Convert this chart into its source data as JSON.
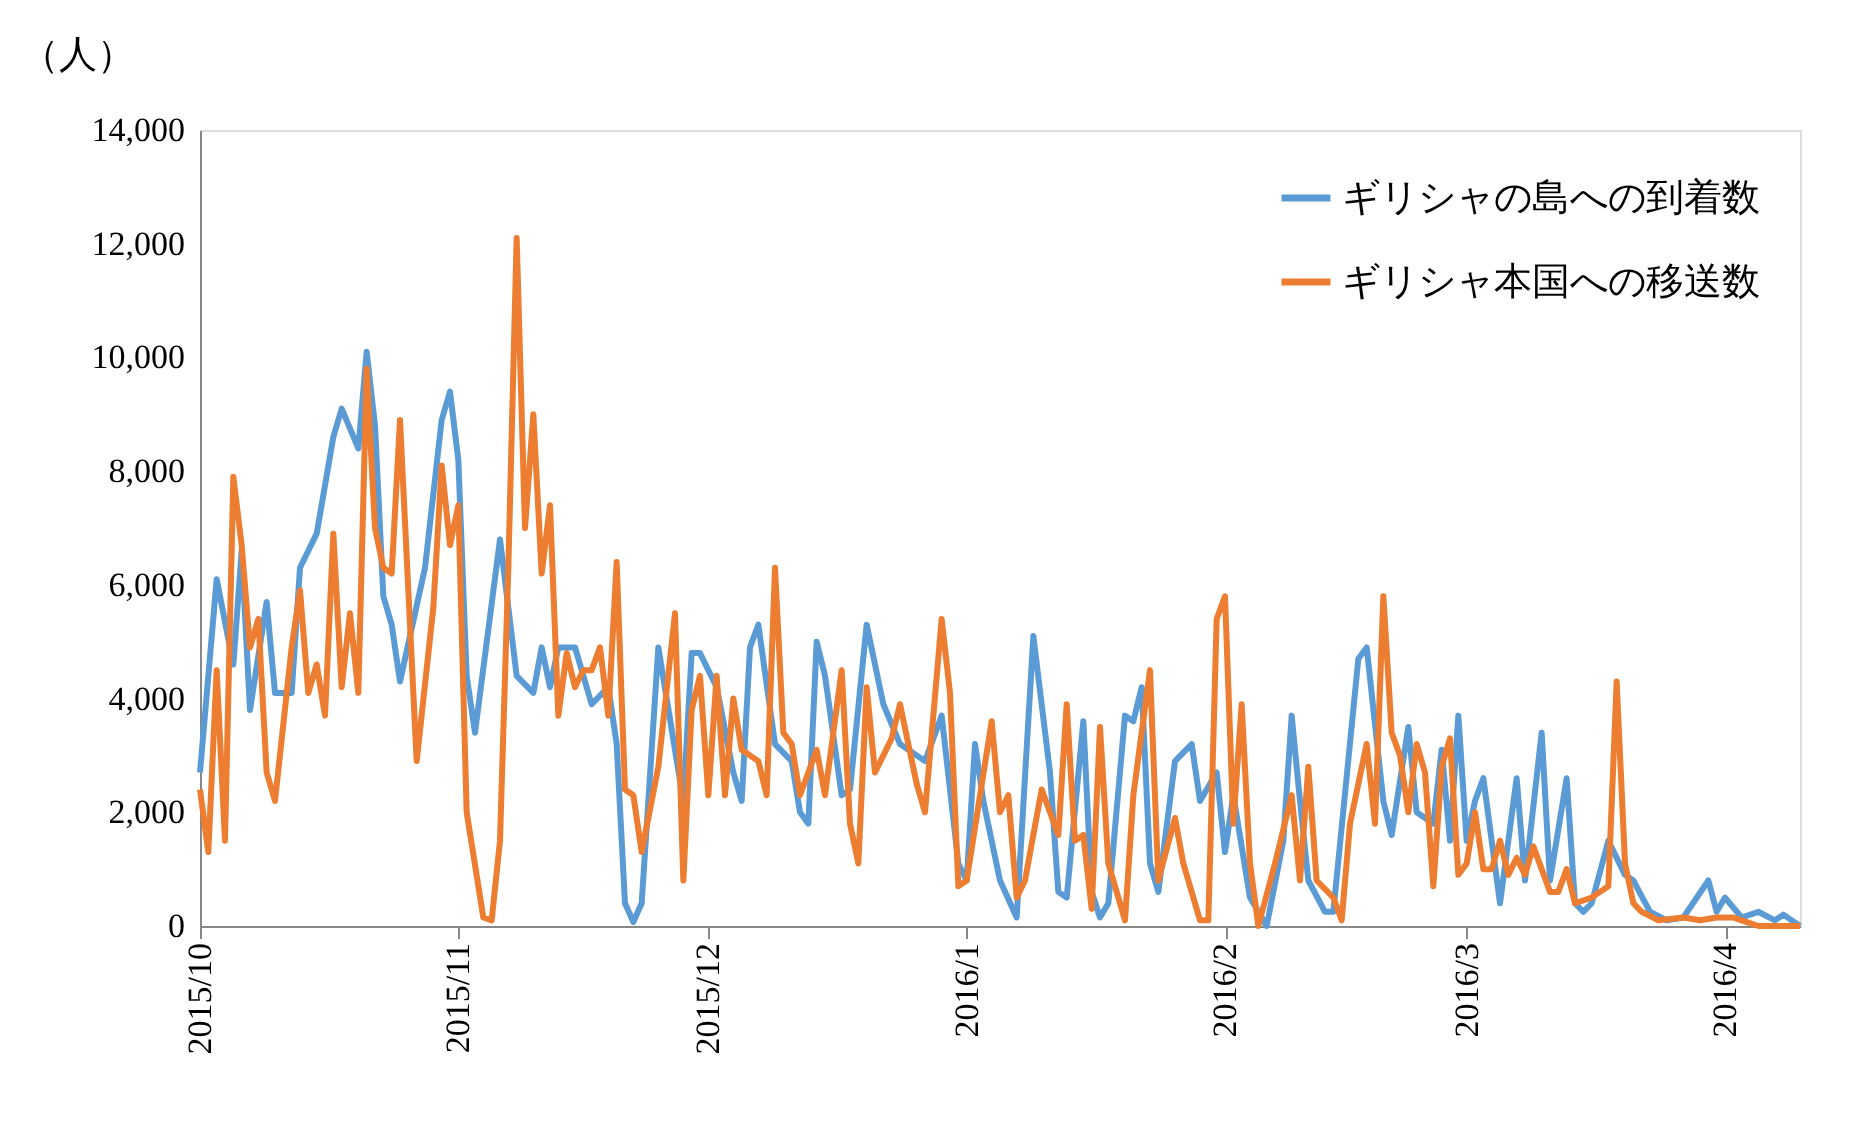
{
  "chart_data": {
    "type": "line",
    "ylabel": "（人）",
    "legend": "top right",
    "grid": false,
    "xlim": [
      "2015-10-01",
      "2016-04-10"
    ],
    "ylim": [
      0,
      14000
    ],
    "yticks": [
      {
        "value": 0,
        "label": "0"
      },
      {
        "value": 2000,
        "label": "2,000"
      },
      {
        "value": 4000,
        "label": "4,000"
      },
      {
        "value": 6000,
        "label": "6,000"
      },
      {
        "value": 8000,
        "label": "8,000"
      },
      {
        "value": 10000,
        "label": "10,000"
      },
      {
        "value": 12000,
        "label": "12,000"
      },
      {
        "value": 14000,
        "label": "14,000"
      }
    ],
    "xticks": [
      {
        "value": "2015-10-01",
        "label": "2015/10"
      },
      {
        "value": "2015-11-01",
        "label": "2015/11"
      },
      {
        "value": "2015-12-01",
        "label": "2015/12"
      },
      {
        "value": "2016-01-01",
        "label": "2016/1"
      },
      {
        "value": "2016-02-01",
        "label": "2016/2"
      },
      {
        "value": "2016-03-01",
        "label": "2016/3"
      },
      {
        "value": "2016-04-01",
        "label": "2016/4"
      }
    ],
    "series": [
      {
        "name": "ギリシャの島への到着数",
        "color": "#5b9bd5",
        "x": [
          "2015-10-01",
          "2015-10-03",
          "2015-10-05",
          "2015-10-06",
          "2015-10-07",
          "2015-10-09",
          "2015-10-10",
          "2015-10-12",
          "2015-10-13",
          "2015-10-15",
          "2015-10-17",
          "2015-10-18",
          "2015-10-20",
          "2015-10-21",
          "2015-10-22",
          "2015-10-23",
          "2015-10-24",
          "2015-10-25",
          "2015-10-28",
          "2015-10-30",
          "2015-10-31",
          "2015-11-01",
          "2015-11-02",
          "2015-11-03",
          "2015-11-06",
          "2015-11-07",
          "2015-11-08",
          "2015-11-10",
          "2015-11-11",
          "2015-11-12",
          "2015-11-13",
          "2015-11-15",
          "2015-11-17",
          "2015-11-19",
          "2015-11-20",
          "2015-11-21",
          "2015-11-22",
          "2015-11-23",
          "2015-11-25",
          "2015-11-28",
          "2015-11-29",
          "2015-11-30",
          "2015-12-02",
          "2015-12-04",
          "2015-12-05",
          "2015-12-06",
          "2015-12-07",
          "2015-12-09",
          "2015-12-11",
          "2015-12-12",
          "2015-12-13",
          "2015-12-14",
          "2015-12-15",
          "2015-12-17",
          "2015-12-18",
          "2015-12-20",
          "2015-12-22",
          "2015-12-24",
          "2015-12-27",
          "2015-12-29",
          "2015-12-31",
          "2016-01-01",
          "2016-01-02",
          "2016-01-03",
          "2016-01-05",
          "2016-01-07",
          "2016-01-09",
          "2016-01-11",
          "2016-01-12",
          "2016-01-13",
          "2016-01-15",
          "2016-01-16",
          "2016-01-17",
          "2016-01-18",
          "2016-01-20",
          "2016-01-21",
          "2016-01-22",
          "2016-01-23",
          "2016-01-24",
          "2016-01-26",
          "2016-01-28",
          "2016-01-29",
          "2016-01-31",
          "2016-02-01",
          "2016-02-02",
          "2016-02-04",
          "2016-02-06",
          "2016-02-08",
          "2016-02-09",
          "2016-02-10",
          "2016-02-11",
          "2016-02-13",
          "2016-02-14",
          "2016-02-17",
          "2016-02-18",
          "2016-02-20",
          "2016-02-21",
          "2016-02-23",
          "2016-02-24",
          "2016-02-26",
          "2016-02-27",
          "2016-02-28",
          "2016-02-29",
          "2016-03-01",
          "2016-03-02",
          "2016-03-03",
          "2016-03-05",
          "2016-03-07",
          "2016-03-08",
          "2016-03-10",
          "2016-03-11",
          "2016-03-13",
          "2016-03-14",
          "2016-03-15",
          "2016-03-16",
          "2016-03-18",
          "2016-03-20",
          "2016-03-21",
          "2016-03-23",
          "2016-03-25",
          "2016-03-27",
          "2016-03-30",
          "2016-03-31",
          "2016-04-01",
          "2016-04-03",
          "2016-04-05",
          "2016-04-07",
          "2016-04-08",
          "2016-04-10"
        ],
        "values": [
          2700,
          6100,
          4600,
          6600,
          3800,
          5700,
          4100,
          4100,
          6300,
          6900,
          8600,
          9100,
          8400,
          10100,
          8800,
          5800,
          5300,
          4300,
          6300,
          8900,
          9400,
          8200,
          4400,
          3400,
          6800,
          5600,
          4400,
          4100,
          4900,
          4200,
          4900,
          4900,
          3900,
          4200,
          3200,
          400,
          70,
          400,
          4900,
          2200,
          4800,
          4800,
          4200,
          2700,
          2200,
          4900,
          5300,
          3200,
          2900,
          2000,
          1800,
          5000,
          4400,
          2300,
          2400,
          5300,
          3900,
          3200,
          2900,
          3700,
          1100,
          800,
          3200,
          2200,
          800,
          150,
          5100,
          2700,
          600,
          500,
          3600,
          600,
          150,
          400,
          3700,
          3600,
          4200,
          1100,
          600,
          2900,
          3200,
          2200,
          2700,
          1300,
          2300,
          500,
          0,
          1500,
          3700,
          2200,
          800,
          250,
          250,
          4700,
          4900,
          2200,
          1600,
          3500,
          2000,
          1800,
          3100,
          1500,
          3700,
          1500,
          2200,
          2600,
          400,
          2600,
          800,
          3400,
          800,
          2600,
          400,
          250,
          400,
          1500,
          900,
          800,
          250,
          100,
          150,
          800,
          250,
          500,
          150,
          250,
          100,
          200,
          0
        ]
      },
      {
        "name": "ギリシャ本国への移送数",
        "color": "#ed7d31",
        "x": [
          "2015-10-01",
          "2015-10-02",
          "2015-10-03",
          "2015-10-04",
          "2015-10-05",
          "2015-10-06",
          "2015-10-07",
          "2015-10-08",
          "2015-10-09",
          "2015-10-10",
          "2015-10-12",
          "2015-10-13",
          "2015-10-14",
          "2015-10-15",
          "2015-10-16",
          "2015-10-17",
          "2015-10-18",
          "2015-10-19",
          "2015-10-20",
          "2015-10-21",
          "2015-10-22",
          "2015-10-23",
          "2015-10-24",
          "2015-10-25",
          "2015-10-27",
          "2015-10-29",
          "2015-10-30",
          "2015-10-31",
          "2015-11-01",
          "2015-11-02",
          "2015-11-04",
          "2015-11-05",
          "2015-11-06",
          "2015-11-07",
          "2015-11-08",
          "2015-11-09",
          "2015-11-10",
          "2015-11-11",
          "2015-11-12",
          "2015-11-13",
          "2015-11-14",
          "2015-11-15",
          "2015-11-16",
          "2015-11-17",
          "2015-11-18",
          "2015-11-19",
          "2015-11-20",
          "2015-11-21",
          "2015-11-22",
          "2015-11-23",
          "2015-11-25",
          "2015-11-27",
          "2015-11-28",
          "2015-11-29",
          "2015-11-30",
          "2015-12-01",
          "2015-12-02",
          "2015-12-03",
          "2015-12-04",
          "2015-12-05",
          "2015-12-07",
          "2015-12-08",
          "2015-12-09",
          "2015-12-10",
          "2015-12-11",
          "2015-12-12",
          "2015-12-14",
          "2015-12-15",
          "2015-12-17",
          "2015-12-18",
          "2015-12-19",
          "2015-12-20",
          "2015-12-21",
          "2015-12-23",
          "2015-12-24",
          "2015-12-26",
          "2015-12-27",
          "2015-12-29",
          "2015-12-30",
          "2015-12-31",
          "2016-01-01",
          "2016-01-04",
          "2016-01-05",
          "2016-01-06",
          "2016-01-07",
          "2016-01-08",
          "2016-01-10",
          "2016-01-12",
          "2016-01-13",
          "2016-01-14",
          "2016-01-15",
          "2016-01-16",
          "2016-01-17",
          "2016-01-18",
          "2016-01-20",
          "2016-01-21",
          "2016-01-23",
          "2016-01-24",
          "2016-01-26",
          "2016-01-27",
          "2016-01-29",
          "2016-01-30",
          "2016-01-31",
          "2016-02-01",
          "2016-02-02",
          "2016-02-03",
          "2016-02-04",
          "2016-02-05",
          "2016-02-07",
          "2016-02-08",
          "2016-02-09",
          "2016-02-10",
          "2016-02-11",
          "2016-02-12",
          "2016-02-14",
          "2016-02-15",
          "2016-02-16",
          "2016-02-18",
          "2016-02-19",
          "2016-02-20",
          "2016-02-21",
          "2016-02-22",
          "2016-02-23",
          "2016-02-24",
          "2016-02-25",
          "2016-02-26",
          "2016-02-27",
          "2016-02-28",
          "2016-02-29",
          "2016-03-01",
          "2016-03-02",
          "2016-03-03",
          "2016-03-04",
          "2016-03-05",
          "2016-03-06",
          "2016-03-07",
          "2016-03-08",
          "2016-03-09",
          "2016-03-10",
          "2016-03-11",
          "2016-03-12",
          "2016-03-13",
          "2016-03-14",
          "2016-03-16",
          "2016-03-17",
          "2016-03-18",
          "2016-03-19",
          "2016-03-20",
          "2016-03-21",
          "2016-03-22",
          "2016-03-24",
          "2016-03-27",
          "2016-03-29",
          "2016-03-31",
          "2016-04-02",
          "2016-04-03",
          "2016-04-05",
          "2016-04-10"
        ],
        "values": [
          2400,
          1300,
          4500,
          1500,
          7900,
          6700,
          4900,
          5400,
          2700,
          2200,
          4900,
          5900,
          4100,
          4600,
          3700,
          6900,
          4200,
          5500,
          4100,
          9800,
          7000,
          6300,
          6200,
          8900,
          2900,
          5600,
          8100,
          6700,
          7400,
          2000,
          150,
          100,
          1500,
          6300,
          12100,
          7000,
          9000,
          6200,
          7400,
          3700,
          4800,
          4200,
          4500,
          4500,
          4900,
          3700,
          6400,
          2400,
          2300,
          1300,
          2800,
          5500,
          800,
          3800,
          4400,
          2300,
          4400,
          2300,
          4000,
          3100,
          2900,
          2300,
          6300,
          3400,
          3200,
          2300,
          3100,
          2300,
          4500,
          1800,
          1100,
          4200,
          2700,
          3300,
          3900,
          2500,
          2000,
          5400,
          4100,
          700,
          800,
          3600,
          2000,
          2300,
          500,
          800,
          2400,
          1600,
          3900,
          1500,
          1600,
          300,
          3500,
          1100,
          100,
          2300,
          4500,
          800,
          1900,
          1100,
          100,
          100,
          5400,
          5800,
          1800,
          3900,
          1100,
          0,
          1100,
          1700,
          2300,
          800,
          2800,
          800,
          500,
          100,
          1800,
          3200,
          1800,
          5800,
          3400,
          3000,
          2000,
          3200,
          2700,
          700,
          2800,
          3300,
          900,
          1100,
          2000,
          1000,
          1000,
          1500,
          900,
          1200,
          900,
          1400,
          1000,
          600,
          600,
          1000,
          400,
          500,
          600,
          700,
          4300,
          1100,
          400,
          250,
          100,
          150,
          100,
          150,
          150,
          100,
          0,
          0
        ]
      }
    ]
  }
}
